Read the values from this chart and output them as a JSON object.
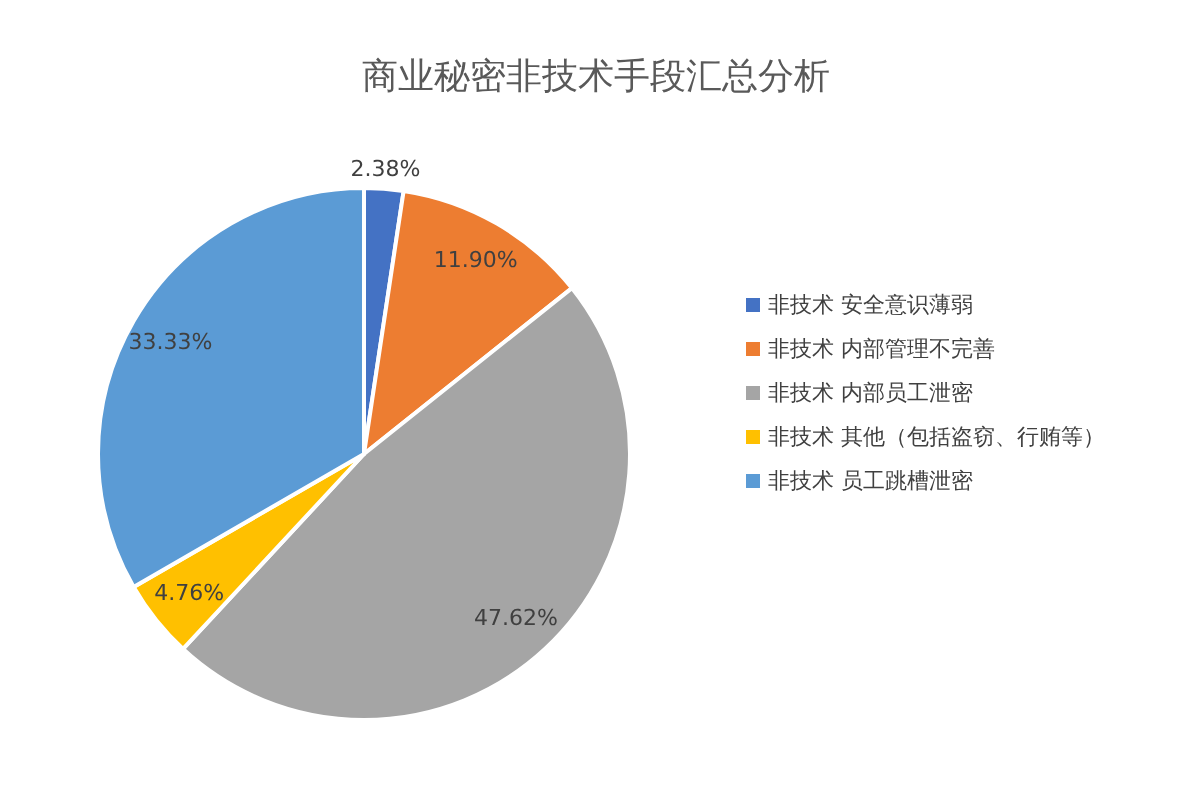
{
  "chart_data": {
    "type": "pie",
    "title": "商业秘密非技术手段汇总分析",
    "categories": [
      "非技术 安全意识薄弱",
      "非技术 内部管理不完善",
      "非技术 内部员工泄密",
      "非技术 其他（包括盗窃、行贿等）",
      "非技术 员工跳槽泄密"
    ],
    "values": [
      2.38,
      11.9,
      47.62,
      4.76,
      33.33
    ],
    "value_labels": [
      "2.38%",
      "11.90%",
      "47.62%",
      "4.76%",
      "33.33%"
    ],
    "colors": [
      "#4472c4",
      "#ed7d31",
      "#a5a5a5",
      "#ffc000",
      "#5b9bd5"
    ],
    "legend": "right"
  }
}
